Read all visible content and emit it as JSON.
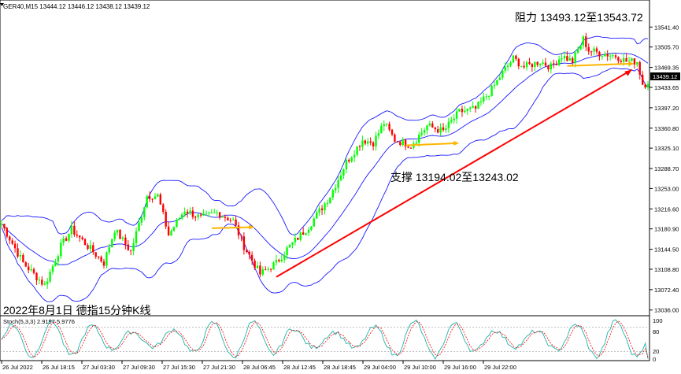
{
  "window": {
    "symbol_header": "GER40,M15  13444.12 13446.12 13438.12 13439.12"
  },
  "annotations": {
    "resistance": "阻力 13493.12至13543.72",
    "support": "支撑 13194.02至13243.02",
    "caption": "2022年8月1日 德指15分钟K线"
  },
  "indicator": {
    "label": "Stoch(5,3,3) 2.9197 5.9776",
    "levels": [
      "100",
      "80",
      "20",
      "0"
    ]
  },
  "price_tag": "13439.12",
  "colors": {
    "bull": "#00ff00",
    "bear": "#ff0000",
    "band": "#1a1aff",
    "trend": "#ff0000",
    "arrow": "#ffb400",
    "stoch_main": "#20b2aa",
    "stoch_signal": "#ff0000",
    "bg": "#ffffff"
  },
  "chart_data": {
    "type": "candlestick",
    "y_ticks": [
      "13541.40",
      "13505.70",
      "13469.35",
      "13433.65",
      "13397.20",
      "13360.80",
      "13325.10",
      "13288.70",
      "13253.00",
      "13216.60",
      "13180.90",
      "13144.50",
      "13108.80",
      "13072.40",
      "13036.00"
    ],
    "ylim": [
      13030,
      13570
    ],
    "x_ticks": [
      "26 Jul 2022",
      "26 Jul 18:15",
      "27 Jul 03:30",
      "27 Jul 09:30",
      "27 Jul 15:30",
      "27 Jul 21:30",
      "28 Jul 06:45",
      "28 Jul 12:45",
      "28 Jul 18:45",
      "29 Jul 04:00",
      "29 Jul 10:00",
      "29 Jul 16:00",
      "29 Jul 22:00"
    ],
    "close_path": [
      [
        0,
        13190
      ],
      [
        8,
        13120
      ],
      [
        16,
        13080
      ],
      [
        22,
        13150
      ],
      [
        26,
        13180
      ],
      [
        32,
        13150
      ],
      [
        38,
        13120
      ],
      [
        42,
        13180
      ],
      [
        48,
        13140
      ],
      [
        54,
        13240
      ],
      [
        58,
        13240
      ],
      [
        62,
        13170
      ],
      [
        68,
        13215
      ],
      [
        74,
        13200
      ],
      [
        80,
        13210
      ],
      [
        86,
        13195
      ],
      [
        90,
        13150
      ],
      [
        96,
        13100
      ],
      [
        102,
        13120
      ],
      [
        106,
        13145
      ],
      [
        114,
        13185
      ],
      [
        122,
        13240
      ],
      [
        128,
        13300
      ],
      [
        134,
        13340
      ],
      [
        138,
        13335
      ],
      [
        142,
        13370
      ],
      [
        146,
        13340
      ],
      [
        152,
        13330
      ],
      [
        158,
        13365
      ],
      [
        164,
        13355
      ],
      [
        170,
        13390
      ],
      [
        176,
        13395
      ],
      [
        182,
        13430
      ],
      [
        186,
        13460
      ],
      [
        190,
        13485
      ],
      [
        194,
        13470
      ],
      [
        200,
        13480
      ],
      [
        204,
        13470
      ],
      [
        208,
        13490
      ],
      [
        212,
        13480
      ],
      [
        214,
        13500
      ],
      [
        216,
        13520
      ],
      [
        218,
        13500
      ],
      [
        222,
        13495
      ],
      [
        228,
        13490
      ],
      [
        232,
        13480
      ],
      [
        236,
        13480
      ],
      [
        238,
        13440
      ],
      [
        240,
        13440
      ]
    ],
    "last_price": 13439.12,
    "stoch_ylim": [
      0,
      100
    ],
    "stoch_levels": [
      80,
      20
    ]
  }
}
